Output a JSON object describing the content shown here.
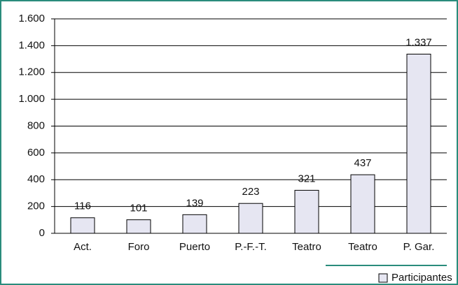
{
  "chart_data": {
    "type": "bar",
    "categories": [
      "Act.",
      "Foro",
      "Puerto",
      "P.-F.-T.",
      "Teatro",
      "Teatro",
      "P. Gar."
    ],
    "series": [
      {
        "name": "Participantes",
        "color": "#e6e6f2",
        "values": [
          116,
          101,
          139,
          223,
          321,
          437,
          1337
        ],
        "value_labels": [
          "116",
          "101",
          "139",
          "223",
          "321",
          "437",
          "1.337"
        ]
      }
    ],
    "ylim": [
      0,
      1600
    ],
    "yticks": [
      0,
      200,
      400,
      600,
      800,
      {
        "value": 1000,
        "label": "1.000"
      },
      {
        "value": 1200,
        "label": "1.200"
      },
      {
        "value": 1400,
        "label": "1.400"
      },
      {
        "value": 1600,
        "label": "1.600"
      }
    ],
    "grid": true,
    "legend": "lower right"
  }
}
